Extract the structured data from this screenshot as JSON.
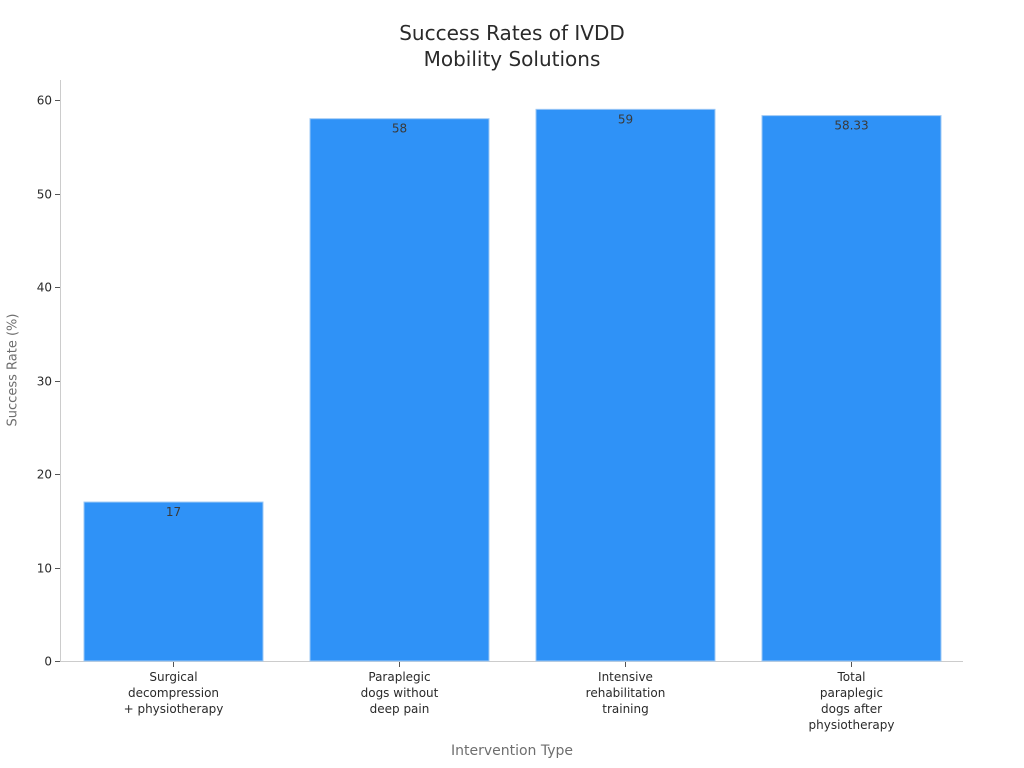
{
  "chart": {
    "title_lines": [
      "Success Rates of IVDD",
      "Mobility Solutions"
    ],
    "xlabel": "Intervention Type",
    "ylabel": "Success Rate (%)",
    "bar_color": "#2f92f7",
    "bar_edge_color": "#9cc8f5",
    "axis_color": "#cccccc",
    "y_ticks": [
      "0",
      "10",
      "20",
      "30",
      "40",
      "50",
      "60"
    ],
    "categories": [
      {
        "lines": [
          "Surgical",
          "decompression",
          "+ physiotherapy"
        ],
        "value_label": "17"
      },
      {
        "lines": [
          "Paraplegic",
          "dogs without",
          "deep pain"
        ],
        "value_label": "58"
      },
      {
        "lines": [
          "Intensive",
          "rehabilitation",
          "training"
        ],
        "value_label": "59"
      },
      {
        "lines": [
          "Total",
          "paraplegic",
          "dogs after",
          "physiotherapy"
        ],
        "value_label": "58.33"
      }
    ]
  },
  "chart_data": {
    "type": "bar",
    "title": "Success Rates of IVDD Mobility Solutions",
    "xlabel": "Intervention Type",
    "ylabel": "Success Rate (%)",
    "categories": [
      "Surgical decompression + physiotherapy",
      "Paraplegic dogs without deep pain",
      "Intensive rehabilitation training",
      "Total paraplegic dogs after physiotherapy"
    ],
    "values": [
      17,
      58,
      59,
      58.33
    ],
    "ylim": [
      0,
      62
    ],
    "y_ticks": [
      0,
      10,
      20,
      30,
      40,
      50,
      60
    ],
    "grid": false,
    "legend": null,
    "data_labels": true,
    "color": "#2f92f7"
  }
}
